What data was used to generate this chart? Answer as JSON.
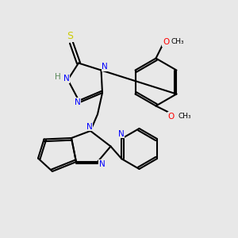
{
  "background_color": "#e8e8e8",
  "bond_color": "#000000",
  "N_color": "#0000ff",
  "O_color": "#ff0000",
  "S_color": "#cccc00",
  "H_color": "#5a8a5a",
  "figsize": [
    3.0,
    3.0
  ],
  "dpi": 100,
  "xlim": [
    0,
    10
  ],
  "ylim": [
    0,
    10
  ]
}
